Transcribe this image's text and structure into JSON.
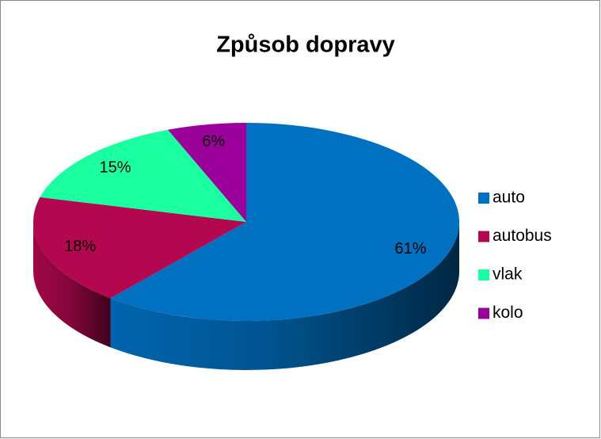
{
  "chart_data": {
    "type": "pie",
    "title": "Způsob dopravy",
    "categories": [
      "auto",
      "autobus",
      "vlak",
      "kolo"
    ],
    "values": [
      61,
      18,
      15,
      6
    ],
    "value_labels": [
      "61%",
      "18%",
      "15%",
      "6%"
    ],
    "colors": [
      "#0070c0",
      "#b3074f",
      "#1affa0",
      "#9b009b"
    ],
    "legend": "right"
  }
}
